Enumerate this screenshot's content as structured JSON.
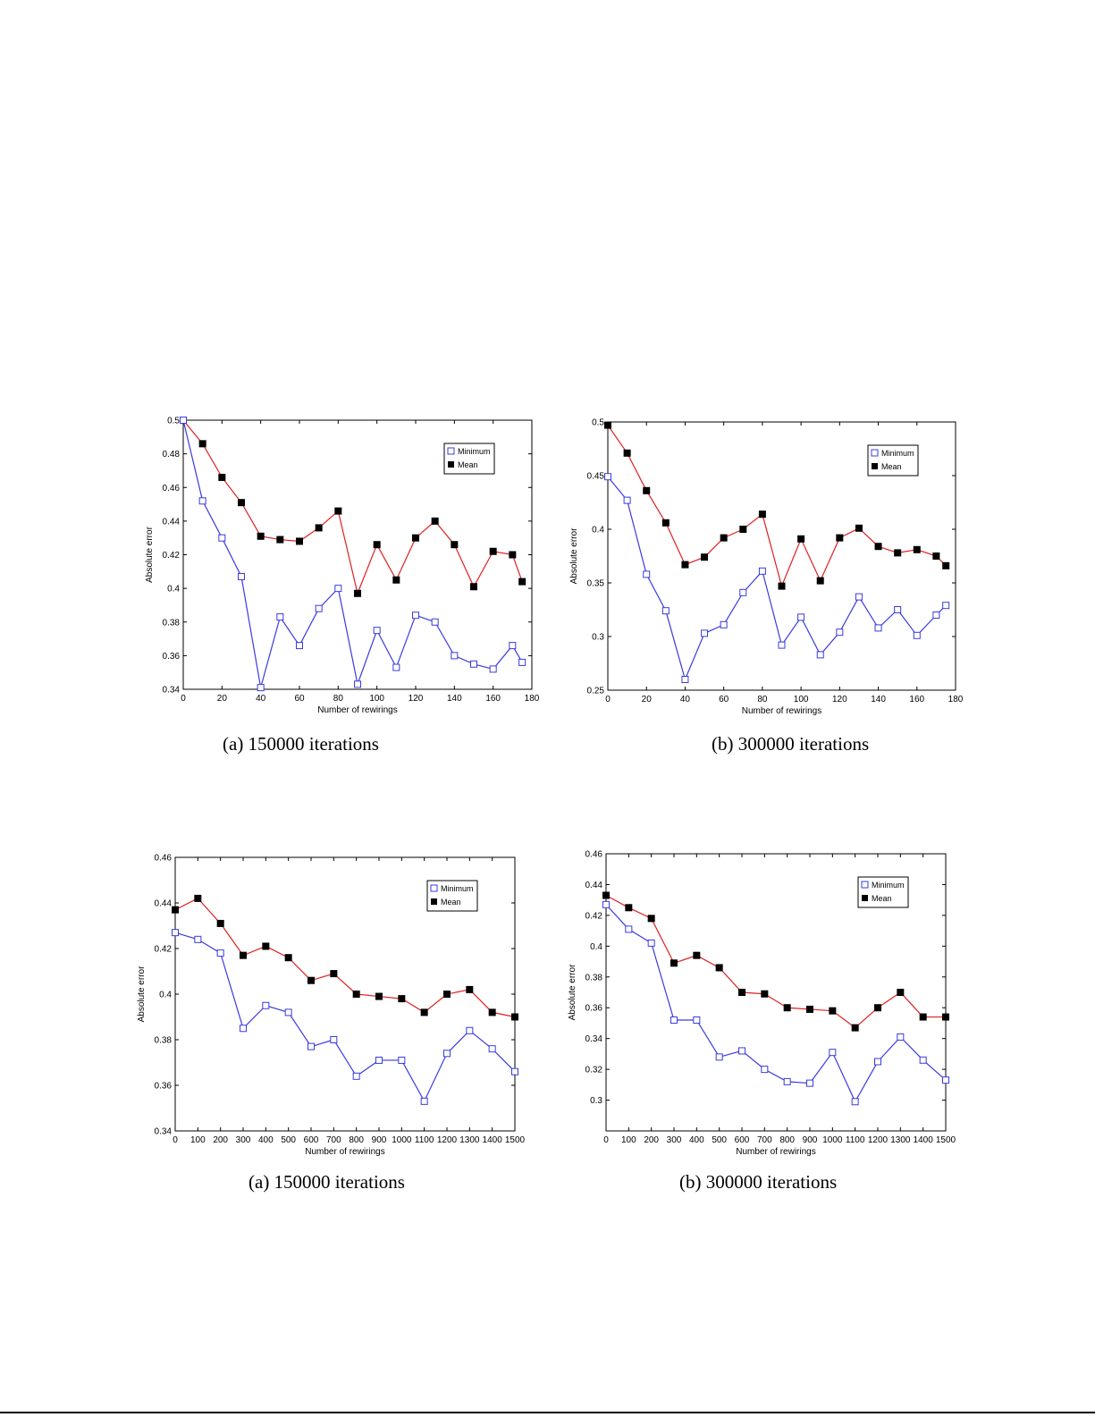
{
  "colors": {
    "minimum_line": "#3a3ae0",
    "mean_line": "#e02020",
    "mean_marker": "#000000",
    "minimum_marker": "#3a3ae0"
  },
  "chart_data": [
    {
      "type": "line",
      "caption": "(a) 150000 iterations",
      "xlabel": "Number of rewirings",
      "ylabel": "Absolute error",
      "xlim": [
        0,
        180
      ],
      "ylim": [
        0.34,
        0.5
      ],
      "xticks": [
        0,
        20,
        40,
        60,
        80,
        100,
        120,
        140,
        160,
        180
      ],
      "xtick_labels": [
        "0",
        "20",
        "40",
        "60",
        "80",
        "100",
        "120",
        "140",
        "160",
        "180"
      ],
      "yticks": [
        0.34,
        0.36,
        0.38,
        0.4,
        0.42,
        0.44,
        0.46,
        0.48,
        0.5
      ],
      "ytick_labels": [
        "0.34",
        "0.36",
        "0.38",
        "0.4",
        "0.42",
        "0.44",
        "0.46",
        "0.48",
        "0.5"
      ],
      "legend_position": "top-right",
      "x": [
        0,
        10,
        20,
        30,
        40,
        50,
        60,
        70,
        80,
        90,
        100,
        110,
        120,
        130,
        140,
        150,
        160,
        170,
        175
      ],
      "series": [
        {
          "name": "Minimum",
          "marker": "open-square",
          "values": [
            0.5,
            0.452,
            0.43,
            0.407,
            0.341,
            0.383,
            0.366,
            0.388,
            0.4,
            0.343,
            0.375,
            0.353,
            0.384,
            0.38,
            0.36,
            0.355,
            0.352,
            0.366,
            0.356
          ]
        },
        {
          "name": "Mean",
          "marker": "filled-square",
          "values": [
            0.5,
            0.486,
            0.466,
            0.451,
            0.431,
            0.429,
            0.428,
            0.436,
            0.446,
            0.397,
            0.426,
            0.405,
            0.43,
            0.44,
            0.426,
            0.401,
            0.422,
            0.42,
            0.404
          ]
        }
      ]
    },
    {
      "type": "line",
      "caption": "(b) 300000 iterations",
      "xlabel": "Number of rewirings",
      "ylabel": "Absolute error",
      "xlim": [
        0,
        180
      ],
      "ylim": [
        0.25,
        0.5
      ],
      "xticks": [
        0,
        20,
        40,
        60,
        80,
        100,
        120,
        140,
        160,
        180
      ],
      "xtick_labels": [
        "0",
        "20",
        "40",
        "60",
        "80",
        "100",
        "120",
        "140",
        "160",
        "180"
      ],
      "yticks": [
        0.25,
        0.3,
        0.35,
        0.4,
        0.45,
        0.5
      ],
      "ytick_labels": [
        "0.25",
        "0.3",
        "0.35",
        "0.4",
        "0.45",
        "0.5"
      ],
      "legend_position": "top-right",
      "x": [
        0,
        10,
        20,
        30,
        40,
        50,
        60,
        70,
        80,
        90,
        100,
        110,
        120,
        130,
        140,
        150,
        160,
        170,
        175
      ],
      "series": [
        {
          "name": "Minimum",
          "marker": "open-square",
          "values": [
            0.449,
            0.427,
            0.358,
            0.324,
            0.26,
            0.303,
            0.311,
            0.341,
            0.361,
            0.292,
            0.318,
            0.283,
            0.304,
            0.337,
            0.308,
            0.325,
            0.301,
            0.32,
            0.329
          ]
        },
        {
          "name": "Mean",
          "marker": "filled-square",
          "values": [
            0.497,
            0.471,
            0.436,
            0.406,
            0.367,
            0.374,
            0.392,
            0.4,
            0.414,
            0.347,
            0.391,
            0.352,
            0.392,
            0.401,
            0.384,
            0.378,
            0.381,
            0.375,
            0.366
          ]
        }
      ]
    },
    {
      "type": "line",
      "caption": "(a) 150000 iterations",
      "xlabel": "Number of rewirings",
      "ylabel": "Absolute error",
      "xlim": [
        0,
        1500
      ],
      "ylim": [
        0.34,
        0.46
      ],
      "xticks": [
        0,
        100,
        200,
        300,
        400,
        500,
        600,
        700,
        800,
        900,
        1000,
        1100,
        1200,
        1300,
        1400,
        1500
      ],
      "xtick_labels": [
        "0",
        "100",
        "200",
        "300",
        "400",
        "500",
        "600",
        "700",
        "800",
        "900",
        "1000",
        "1100",
        "1200",
        "1300",
        "1400",
        "1500"
      ],
      "yticks": [
        0.34,
        0.36,
        0.38,
        0.4,
        0.42,
        0.44,
        0.46
      ],
      "ytick_labels": [
        "0.34",
        "0.36",
        "0.38",
        "0.4",
        "0.42",
        "0.44",
        "0.46"
      ],
      "legend_position": "top-right",
      "x": [
        0,
        100,
        200,
        300,
        400,
        500,
        600,
        700,
        800,
        900,
        1000,
        1100,
        1200,
        1300,
        1400,
        1500
      ],
      "series": [
        {
          "name": "Minimum",
          "marker": "open-square",
          "values": [
            0.427,
            0.424,
            0.418,
            0.385,
            0.395,
            0.392,
            0.377,
            0.38,
            0.364,
            0.371,
            0.371,
            0.353,
            0.374,
            0.384,
            0.376,
            0.366
          ]
        },
        {
          "name": "Mean",
          "marker": "filled-square",
          "values": [
            0.437,
            0.442,
            0.431,
            0.417,
            0.421,
            0.416,
            0.406,
            0.409,
            0.4,
            0.399,
            0.398,
            0.392,
            0.4,
            0.402,
            0.392,
            0.39
          ]
        }
      ]
    },
    {
      "type": "line",
      "caption": "(b) 300000 iterations",
      "xlabel": "Number of rewirings",
      "ylabel": "Absolute error",
      "xlim": [
        0,
        1500
      ],
      "ylim": [
        0.28,
        0.46
      ],
      "xticks": [
        0,
        100,
        200,
        300,
        400,
        500,
        600,
        700,
        800,
        900,
        1000,
        1100,
        1200,
        1300,
        1400,
        1500
      ],
      "xtick_labels": [
        "0",
        "100",
        "200",
        "300",
        "400",
        "500",
        "600",
        "700",
        "800",
        "900",
        "1000",
        "1100",
        "1200",
        "1300",
        "1400",
        "1500"
      ],
      "yticks": [
        0.3,
        0.32,
        0.34,
        0.36,
        0.38,
        0.4,
        0.42,
        0.44,
        0.46
      ],
      "ytick_labels": [
        "0.3",
        "0.32",
        "0.34",
        "0.36",
        "0.38",
        "0.4",
        "0.42",
        "0.44",
        "0.46"
      ],
      "legend_position": "top-right",
      "x": [
        0,
        100,
        200,
        300,
        400,
        500,
        600,
        700,
        800,
        900,
        1000,
        1100,
        1200,
        1300,
        1400,
        1500
      ],
      "series": [
        {
          "name": "Minimum",
          "marker": "open-square",
          "values": [
            0.427,
            0.411,
            0.402,
            0.352,
            0.352,
            0.328,
            0.332,
            0.32,
            0.312,
            0.311,
            0.331,
            0.299,
            0.325,
            0.341,
            0.326,
            0.313
          ]
        },
        {
          "name": "Mean",
          "marker": "filled-square",
          "values": [
            0.433,
            0.425,
            0.418,
            0.389,
            0.394,
            0.386,
            0.37,
            0.369,
            0.36,
            0.359,
            0.358,
            0.347,
            0.36,
            0.37,
            0.354,
            0.354
          ]
        }
      ]
    }
  ]
}
